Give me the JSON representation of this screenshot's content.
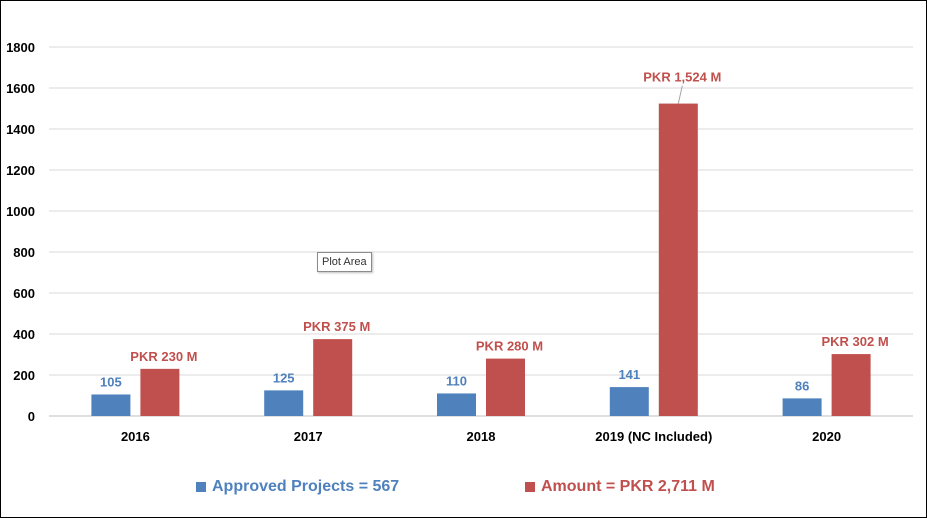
{
  "chart_data": {
    "type": "bar",
    "categories": [
      "2016",
      "2017",
      "2018",
      "2019   (NC Included)",
      "2020"
    ],
    "series": [
      {
        "name": "Approved Projects = 567",
        "color": "#4f81bd",
        "label_color": "#4f81bd",
        "values": [
          105,
          125,
          110,
          141,
          86
        ],
        "data_labels": [
          "105",
          "125",
          "110",
          "141",
          "86"
        ]
      },
      {
        "name": "Amount = PKR 2,711 M",
        "color": "#c0504d",
        "label_color": "#c0504d",
        "values": [
          230,
          375,
          280,
          1524,
          302
        ],
        "data_labels": [
          "PKR 230 M",
          "PKR 375 M",
          "PKR 280 M",
          "PKR 1,524 M",
          "PKR 302 M"
        ]
      }
    ],
    "yticks": [
      "0",
      "200",
      "400",
      "600",
      "800",
      "1000",
      "1200",
      "1400",
      "1600",
      "1800"
    ],
    "ylim": [
      0,
      1800
    ],
    "grid": true,
    "legend": "bottom",
    "title": "",
    "xlabel": "",
    "ylabel": ""
  },
  "tooltip": {
    "text": "Plot Area"
  }
}
